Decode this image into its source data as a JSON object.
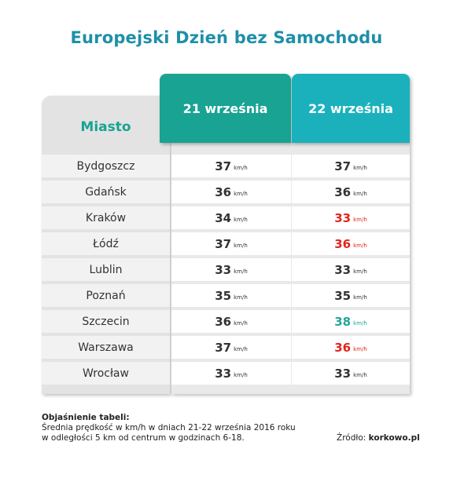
{
  "title": "Europejski Dzień bez Samochodu",
  "colors": {
    "title": "#1e8fa8",
    "header_1": "#18a393",
    "header_2": "#1ab1bd",
    "normal": "#333333",
    "lower": "#e0261c",
    "higher": "#26a598"
  },
  "chart_data": {
    "type": "table",
    "columns": [
      "Miasto",
      "21 września",
      "22 września"
    ],
    "unit": "km/h",
    "rows": [
      {
        "city": "Bydgoszcz",
        "d21": 37,
        "d22": 37,
        "d22_status": "normal"
      },
      {
        "city": "Gdańsk",
        "d21": 36,
        "d22": 36,
        "d22_status": "normal"
      },
      {
        "city": "Kraków",
        "d21": 34,
        "d22": 33,
        "d22_status": "lower"
      },
      {
        "city": "Łódź",
        "d21": 37,
        "d22": 36,
        "d22_status": "lower"
      },
      {
        "city": "Lublin",
        "d21": 33,
        "d22": 33,
        "d22_status": "normal"
      },
      {
        "city": "Poznań",
        "d21": 35,
        "d22": 35,
        "d22_status": "normal"
      },
      {
        "city": "Szczecin",
        "d21": 36,
        "d22": 38,
        "d22_status": "higher"
      },
      {
        "city": "Warszawa",
        "d21": 37,
        "d22": 36,
        "d22_status": "lower"
      },
      {
        "city": "Wrocław",
        "d21": 33,
        "d22": 33,
        "d22_status": "normal"
      }
    ]
  },
  "footer": {
    "heading": "Objaśnienie tabeli:",
    "line1": "Średnia prędkość w km/h w dniach 21-22 września 2016 roku",
    "line2": "w odległości 5 km od centrum w godzinach 6-18.",
    "source_label": "Źródło:",
    "source_value": "korkowo.pl"
  }
}
